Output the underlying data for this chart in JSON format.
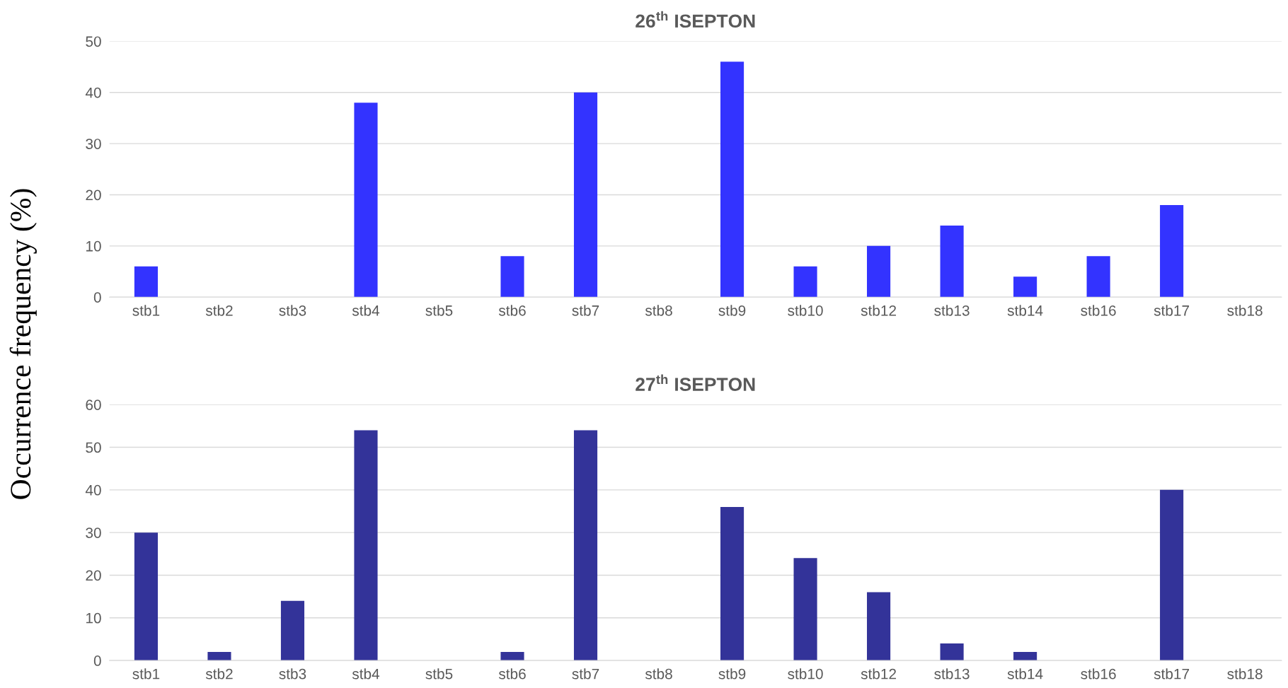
{
  "chart_data": [
    {
      "type": "bar",
      "title": "26$^{th}$ ISEPTON",
      "ylabel": "Occurrence frequency (%)",
      "categories": [
        "stb1",
        "stb2",
        "stb3",
        "stb4",
        "stb5",
        "stb6",
        "stb7",
        "stb8",
        "stb9",
        "stb10",
        "stb12",
        "stb13",
        "stb14",
        "stb16",
        "stb17",
        "stb18"
      ],
      "values": [
        6,
        0,
        0,
        38,
        0,
        8,
        40,
        0,
        46,
        6,
        10,
        14,
        4,
        8,
        18,
        0
      ],
      "color": "#3333ff",
      "ylim": [
        0,
        50
      ],
      "yticks": [
        0,
        10,
        20,
        30,
        40,
        50
      ],
      "grid": "y",
      "legend": false
    },
    {
      "type": "bar",
      "title": "27$^{th}$ ISEPTON",
      "categories": [
        "stb1",
        "stb2",
        "stb3",
        "stb4",
        "stb5",
        "stb6",
        "stb7",
        "stb8",
        "stb9",
        "stb10",
        "stb12",
        "stb13",
        "stb14",
        "stb16",
        "stb17",
        "stb18"
      ],
      "values": [
        30,
        2,
        14,
        54,
        0,
        2,
        54,
        0,
        36,
        24,
        16,
        4,
        2,
        0,
        40,
        0
      ],
      "color": "#333399",
      "ylim": [
        0,
        60
      ],
      "yticks": [
        0,
        10,
        20,
        30,
        40,
        50,
        60
      ],
      "grid": "y",
      "legend": false
    }
  ]
}
